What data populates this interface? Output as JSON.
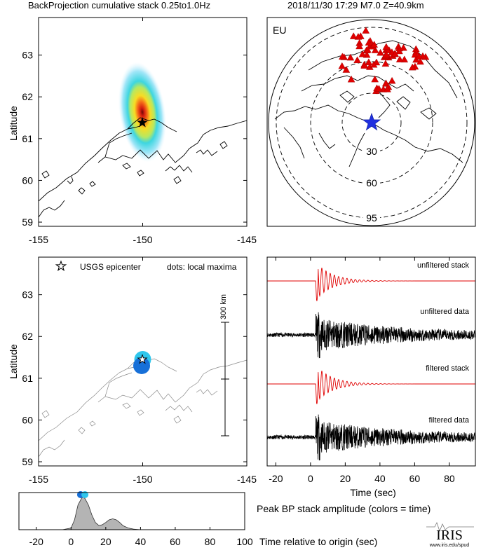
{
  "header": {
    "left_title": "BackProjection cumulative stack 0.25to1.0Hz",
    "right_title": "2018/11/30 17:29  M7.0  Z=40.9km"
  },
  "colors": {
    "station": "#e00000",
    "epicenter": "#2030e0",
    "stack_trace": "#e00000",
    "data_trace": "#000000",
    "maxima_cyan": "#2fc6ec",
    "maxima_blue": "#1770d8"
  },
  "chart_data": [
    {
      "type": "heatmap",
      "name": "cumulative-stack-map",
      "xlabel": "",
      "ylabel": "Latitude",
      "xlim": [
        -155,
        -145
      ],
      "ylim": [
        58.9,
        63.9
      ],
      "xticks": [
        -155,
        -150,
        -145
      ],
      "yticks": [
        59,
        60,
        61,
        62,
        63
      ],
      "epicenter": {
        "lon": -150.0,
        "lat": 61.35
      }
    },
    {
      "type": "scatter",
      "name": "station-map",
      "label": "EU",
      "range_rings": [
        "30",
        "60",
        "95"
      ],
      "epicenter_marker": "blue-star",
      "station_marker": "red-triangle",
      "station_count": 70
    },
    {
      "type": "scatter",
      "name": "local-maxima-map",
      "xlabel": "",
      "ylabel": "Latitude",
      "xlim": [
        -155,
        -145
      ],
      "ylim": [
        58.9,
        63.9
      ],
      "xticks": [
        -155,
        -150,
        -145
      ],
      "yticks": [
        59,
        60,
        61,
        62,
        63
      ],
      "legend_star": "USGS epicenter",
      "legend_dots": "dots: local maxima",
      "scale_bar": "300 km",
      "maxima": [
        {
          "lon": -150.0,
          "lat": 61.45,
          "color": "#2fc6ec"
        },
        {
          "lon": -150.05,
          "lat": 61.3,
          "color": "#1770d8"
        }
      ],
      "epicenter": {
        "lon": -150.0,
        "lat": 61.35
      }
    },
    {
      "type": "line",
      "name": "seismic-traces",
      "xlabel": "Time (sec)",
      "xlim": [
        -25,
        95
      ],
      "xticks": [
        -20,
        0,
        20,
        40,
        60,
        80
      ],
      "series": [
        {
          "name": "unfiltered stack"
        },
        {
          "name": "unfiltered data"
        },
        {
          "name": "filtered stack"
        },
        {
          "name": "filtered data"
        }
      ]
    },
    {
      "type": "area",
      "name": "peak-amplitude",
      "title": "Peak BP stack amplitude (colors = time)",
      "xlabel": "Time relative to origin (sec)",
      "xlim": [
        -30,
        100
      ],
      "xticks": [
        -20,
        0,
        20,
        40,
        60,
        80,
        100
      ],
      "x": [
        -30,
        -5,
        0,
        2,
        4,
        6,
        7,
        8,
        10,
        12,
        14,
        16,
        18,
        20,
        22,
        24,
        26,
        28,
        30,
        33,
        36,
        40,
        50,
        100
      ],
      "y": [
        0,
        0,
        0.05,
        0.3,
        0.75,
        0.95,
        1.0,
        0.95,
        0.75,
        0.45,
        0.22,
        0.13,
        0.15,
        0.22,
        0.3,
        0.33,
        0.3,
        0.22,
        0.12,
        0.05,
        0.02,
        0,
        0,
        0
      ],
      "peak_dots": [
        {
          "x": 5.5,
          "color": "#1770d8"
        },
        {
          "x": 8.0,
          "color": "#2fc6ec"
        }
      ]
    }
  ],
  "logo": {
    "text": "IRIS",
    "url": "www.iris.edu/spud"
  }
}
